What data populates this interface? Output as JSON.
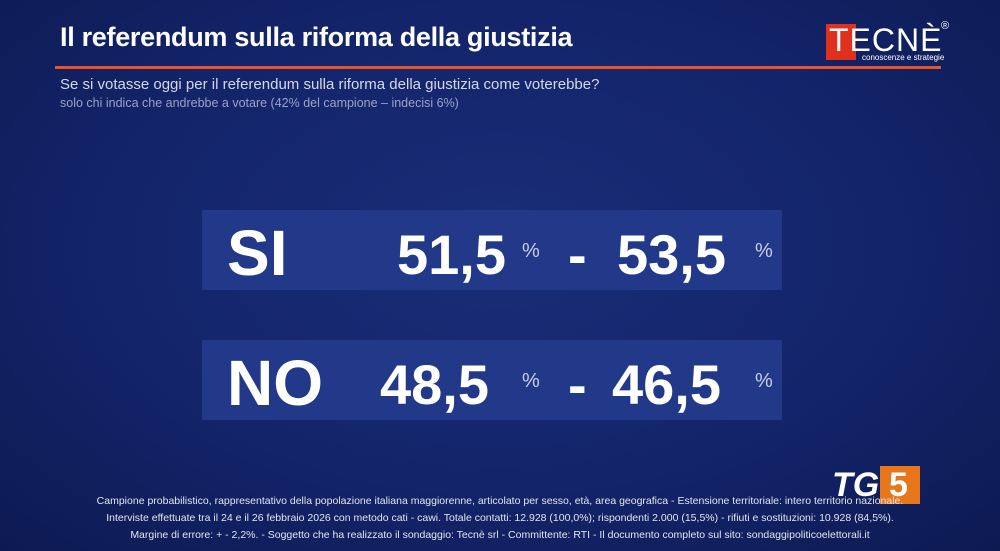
{
  "header": {
    "title": "Il referendum sulla riforma della giustizia",
    "question": "Se si votasse oggi per il referendum sulla riforma della giustizia come voterebbe?",
    "note": "solo chi indica che andrebbe a votare (42% del campione – indecisi 6%)"
  },
  "logo": {
    "name": "TECNÈ",
    "mark": "®",
    "tagline": "conoscenze e strategie"
  },
  "results": [
    {
      "label": "SI",
      "low": "51,5",
      "low_unit": "%",
      "separator": "-",
      "high": "53,5",
      "high_unit": "%"
    },
    {
      "label": "NO",
      "low": "48,5",
      "low_unit": "%",
      "separator": "-",
      "high": "46,5",
      "high_unit": "%"
    }
  ],
  "broadcaster": {
    "name": "TG",
    "number": "5"
  },
  "footer": [
    "Campione probabilistico, rappresentativo della popolazione italiana maggiorenne, articolato per sesso, età, area geografica - Estensione territoriale: intero territorio nazionale.",
    "Interviste effettuate tra il 24 e il 26 febbraio 2026 con metodo cati - cawi. Totale contatti: 12.928 (100,0%); rispondenti 2.000 (15,5%) - rifiuti e sostituzioni: 10.928 (84,5%).",
    "Margine di errore: + - 2,2%.  - Soggetto che ha realizzato il sondaggio: Tecnè srl - Committente: RTI - Il documento completo sul sito: sondaggipoliticoelettorali.it"
  ]
}
